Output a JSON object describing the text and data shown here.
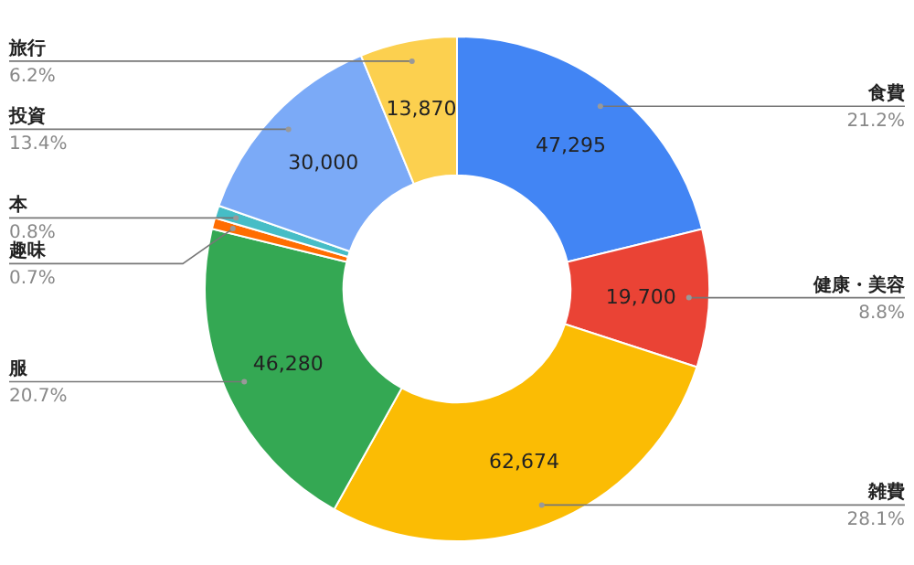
{
  "chart_data": {
    "type": "donut",
    "categories": [
      "食費",
      "健康・美容",
      "雑費",
      "服",
      "趣味",
      "本",
      "投資",
      "旅行"
    ],
    "values": [
      47295,
      19700,
      62674,
      46280,
      1600,
      1800,
      30000,
      13870
    ],
    "value_labels": [
      "47,295",
      "19,700",
      "62,674",
      "46,280",
      null,
      null,
      "30,000",
      "13,870"
    ],
    "colors": [
      "#4285f4",
      "#ea4335",
      "#fbbc04",
      "#34a853",
      "#ff6d01",
      "#46bdc6",
      "#7baaf7",
      "#fcd04f"
    ],
    "annotations": [
      "21.2%",
      "8.8%",
      "28.1%",
      "20.7%",
      "0.7%",
      "0.8%",
      "13.4%",
      "6.2%"
    ]
  }
}
